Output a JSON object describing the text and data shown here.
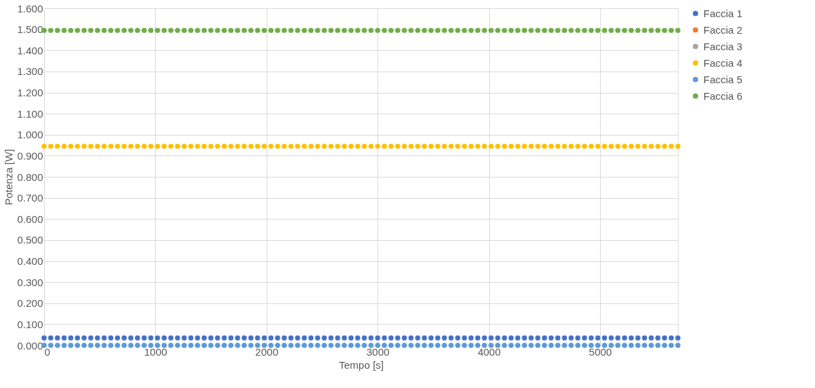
{
  "chart_data": {
    "type": "scatter",
    "xlabel": "Tempo [s]",
    "ylabel": "Potenza [W]",
    "x": [
      0,
      60,
      120,
      180,
      240,
      300,
      360,
      420,
      480,
      540,
      600,
      660,
      720,
      780,
      840,
      900,
      960,
      1020,
      1080,
      1140,
      1200,
      1260,
      1320,
      1380,
      1440,
      1500,
      1560,
      1620,
      1680,
      1740,
      1800,
      1860,
      1920,
      1980,
      2040,
      2100,
      2160,
      2220,
      2280,
      2340,
      2400,
      2460,
      2520,
      2580,
      2640,
      2700,
      2760,
      2820,
      2880,
      2940,
      3000,
      3060,
      3120,
      3180,
      3240,
      3300,
      3360,
      3420,
      3480,
      3540,
      3600,
      3660,
      3720,
      3780,
      3840,
      3900,
      3960,
      4020,
      4080,
      4140,
      4200,
      4260,
      4320,
      4380,
      4440,
      4500,
      4560,
      4620,
      4680,
      4740,
      4800,
      4860,
      4920,
      4980,
      5040,
      5100,
      5160,
      5220,
      5280,
      5340,
      5400,
      5460,
      5520,
      5580,
      5640,
      5700
    ],
    "series": [
      {
        "name": "Faccia 1",
        "color": "#4472c4",
        "values": [
          0.035,
          0.035,
          0.035,
          0.035,
          0.035,
          0.035,
          0.035,
          0.035,
          0.035,
          0.035,
          0.035,
          0.035,
          0.035,
          0.035,
          0.035,
          0.035,
          0.035,
          0.035,
          0.035,
          0.035,
          0.035,
          0.035,
          0.035,
          0.035,
          0.035,
          0.035,
          0.035,
          0.035,
          0.035,
          0.035,
          0.035,
          0.035,
          0.035,
          0.035,
          0.035,
          0.035,
          0.035,
          0.035,
          0.035,
          0.035,
          0.035,
          0.035,
          0.035,
          0.035,
          0.035,
          0.035,
          0.035,
          0.035,
          0.035,
          0.035,
          0.035,
          0.035,
          0.035,
          0.035,
          0.035,
          0.035,
          0.035,
          0.035,
          0.035,
          0.035,
          0.035,
          0.035,
          0.035,
          0.035,
          0.035,
          0.035,
          0.035,
          0.035,
          0.035,
          0.035,
          0.035,
          0.035,
          0.035,
          0.035,
          0.035,
          0.035,
          0.035,
          0.035,
          0.035,
          0.035,
          0.035,
          0.035,
          0.035,
          0.035,
          0.035,
          0.035,
          0.035,
          0.035,
          0.035,
          0.035,
          0.035,
          0.035,
          0.035,
          0.035,
          0.035,
          0.035
        ]
      },
      {
        "name": "Faccia 2",
        "color": "#ed7d31",
        "values": [
          null,
          null,
          null,
          null,
          null,
          null,
          null,
          null,
          null,
          null,
          null,
          null,
          null,
          null,
          null,
          null,
          null,
          null,
          null,
          null,
          null,
          null,
          null,
          null,
          null,
          null,
          null,
          null,
          null,
          null,
          null,
          null,
          null,
          null,
          null,
          null,
          null,
          null,
          null,
          null,
          null,
          null,
          null,
          null,
          null,
          null,
          null,
          null,
          null,
          null,
          null,
          null,
          null,
          null,
          null,
          null,
          null,
          null,
          null,
          null,
          null,
          null,
          null,
          null,
          null,
          null,
          null,
          null,
          null,
          null,
          null,
          null,
          null,
          null,
          null,
          null,
          null,
          null,
          null,
          null,
          null,
          null,
          null,
          null,
          null,
          null,
          null,
          null,
          null,
          null,
          null,
          null,
          null,
          null,
          null,
          null
        ]
      },
      {
        "name": "Faccia 3",
        "color": "#a5a5a5",
        "values": [
          null,
          null,
          null,
          null,
          null,
          null,
          null,
          null,
          null,
          null,
          null,
          null,
          null,
          null,
          null,
          null,
          null,
          null,
          null,
          null,
          null,
          null,
          null,
          null,
          null,
          null,
          null,
          null,
          null,
          null,
          null,
          null,
          null,
          null,
          null,
          null,
          null,
          null,
          null,
          null,
          null,
          null,
          null,
          null,
          null,
          null,
          null,
          null,
          null,
          null,
          null,
          null,
          null,
          null,
          null,
          null,
          null,
          null,
          null,
          null,
          null,
          null,
          null,
          null,
          null,
          null,
          null,
          null,
          null,
          null,
          null,
          null,
          null,
          null,
          null,
          null,
          null,
          null,
          null,
          null,
          null,
          null,
          null,
          null,
          null,
          null,
          null,
          null,
          null,
          null,
          null,
          null,
          null,
          null,
          null,
          null
        ]
      },
      {
        "name": "Faccia 4",
        "color": "#ffc000",
        "values": [
          0.945,
          0.945,
          0.945,
          0.945,
          0.945,
          0.945,
          0.945,
          0.945,
          0.945,
          0.945,
          0.945,
          0.945,
          0.945,
          0.945,
          0.945,
          0.945,
          0.945,
          0.945,
          0.945,
          0.945,
          0.945,
          0.945,
          0.945,
          0.945,
          0.945,
          0.945,
          0.945,
          0.945,
          0.945,
          0.945,
          0.945,
          0.945,
          0.945,
          0.945,
          0.945,
          0.945,
          0.945,
          0.945,
          0.945,
          0.945,
          0.945,
          0.945,
          0.945,
          0.945,
          0.945,
          0.945,
          0.945,
          0.945,
          0.945,
          0.945,
          0.945,
          0.945,
          0.945,
          0.945,
          0.945,
          0.945,
          0.945,
          0.945,
          0.945,
          0.945,
          0.945,
          0.945,
          0.945,
          0.945,
          0.945,
          0.945,
          0.945,
          0.945,
          0.945,
          0.945,
          0.945,
          0.945,
          0.945,
          0.945,
          0.945,
          0.945,
          0.945,
          0.945,
          0.945,
          0.945,
          0.945,
          0.945,
          0.945,
          0.945,
          0.945,
          0.945,
          0.945,
          0.945,
          0.945,
          0.945,
          0.945,
          0.945,
          0.945,
          0.945,
          0.945,
          0.945
        ]
      },
      {
        "name": "Faccia 5",
        "color": "#5b9bd5",
        "values": [
          0,
          0,
          0,
          0,
          0,
          0,
          0,
          0,
          0,
          0,
          0,
          0,
          0,
          0,
          0,
          0,
          0,
          0,
          0,
          0,
          0,
          0,
          0,
          0,
          0,
          0,
          0,
          0,
          0,
          0,
          0,
          0,
          0,
          0,
          0,
          0,
          0,
          0,
          0,
          0,
          0,
          0,
          0,
          0,
          0,
          0,
          0,
          0,
          0,
          0,
          0,
          0,
          0,
          0,
          0,
          0,
          0,
          0,
          0,
          0,
          0,
          0,
          0,
          0,
          0,
          0,
          0,
          0,
          0,
          0,
          0,
          0,
          0,
          0,
          0,
          0,
          0,
          0,
          0,
          0,
          0,
          0,
          0,
          0,
          0,
          0,
          0,
          0,
          0,
          0,
          0,
          0,
          0,
          0,
          0,
          0
        ]
      },
      {
        "name": "Faccia 6",
        "color": "#70ad47",
        "values": [
          1.495,
          1.495,
          1.495,
          1.495,
          1.495,
          1.495,
          1.495,
          1.495,
          1.495,
          1.495,
          1.495,
          1.495,
          1.495,
          1.495,
          1.495,
          1.495,
          1.495,
          1.495,
          1.495,
          1.495,
          1.495,
          1.495,
          1.495,
          1.495,
          1.495,
          1.495,
          1.495,
          1.495,
          1.495,
          1.495,
          1.495,
          1.495,
          1.495,
          1.495,
          1.495,
          1.495,
          1.495,
          1.495,
          1.495,
          1.495,
          1.495,
          1.495,
          1.495,
          1.495,
          1.495,
          1.495,
          1.495,
          1.495,
          1.495,
          1.495,
          1.495,
          1.495,
          1.495,
          1.495,
          1.495,
          1.495,
          1.495,
          1.495,
          1.495,
          1.495,
          1.495,
          1.495,
          1.495,
          1.495,
          1.495,
          1.495,
          1.495,
          1.495,
          1.495,
          1.495,
          1.495,
          1.495,
          1.495,
          1.495,
          1.495,
          1.495,
          1.495,
          1.495,
          1.495,
          1.495,
          1.495,
          1.495,
          1.495,
          1.495,
          1.495,
          1.495,
          1.495,
          1.495,
          1.495,
          1.495,
          1.495,
          1.495,
          1.495,
          1.495,
          1.495,
          1.495
        ]
      }
    ],
    "xlim": [
      0,
      5700
    ],
    "xticks": [
      0,
      1000,
      2000,
      3000,
      4000,
      5000
    ],
    "ylim": [
      0,
      1.6
    ],
    "yticks": [
      {
        "value": 0,
        "label": "0.000"
      },
      {
        "value": 0.1,
        "label": "0.100"
      },
      {
        "value": 0.2,
        "label": "0.200"
      },
      {
        "value": 0.3,
        "label": "0.300"
      },
      {
        "value": 0.4,
        "label": "0.400"
      },
      {
        "value": 0.5,
        "label": "0.500"
      },
      {
        "value": 0.6,
        "label": "0.600"
      },
      {
        "value": 0.7,
        "label": "0.700"
      },
      {
        "value": 0.8,
        "label": "0.800"
      },
      {
        "value": 0.9,
        "label": "0.900"
      },
      {
        "value": 1.0,
        "label": "1.000"
      },
      {
        "value": 1.1,
        "label": "1.100"
      },
      {
        "value": 1.2,
        "label": "1.200"
      },
      {
        "value": 1.3,
        "label": "1.300"
      },
      {
        "value": 1.4,
        "label": "1.400"
      },
      {
        "value": 1.5,
        "label": "1.500"
      },
      {
        "value": 1.6,
        "label": "1.600"
      }
    ],
    "grid": true,
    "legend": "right",
    "marker": "circle"
  }
}
